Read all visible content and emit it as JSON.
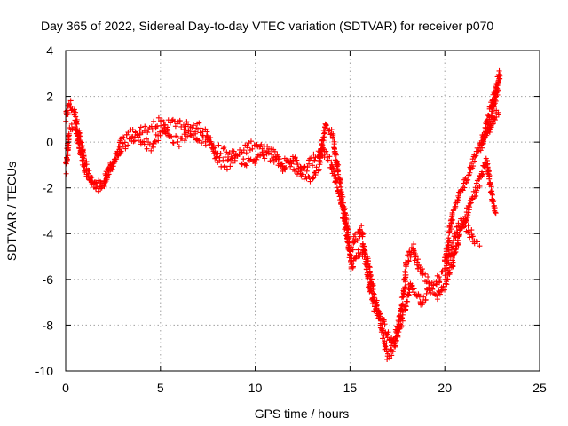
{
  "chart_data": {
    "type": "scatter",
    "title": "Day 365 of 2022, Sidereal Day-to-day VTEC variation (SDTVAR) for receiver p070",
    "xlabel": "GPS time / hours",
    "ylabel": "SDTVAR / TECUs",
    "xlim": [
      0,
      25
    ],
    "ylim": [
      -10,
      4
    ],
    "xticks": [
      0,
      5,
      10,
      15,
      20,
      25
    ],
    "yticks": [
      -10,
      -8,
      -6,
      -4,
      -2,
      0,
      2,
      4
    ],
    "xtick_labels": [
      "0",
      "5",
      "10",
      "15",
      "20",
      "25"
    ],
    "ytick_labels": [
      "-10",
      "-8",
      "-6",
      "-4",
      "-2",
      "0",
      "2",
      "4"
    ],
    "grid": true,
    "marker": "plus",
    "series": [
      {
        "name": "SDTVAR arc A",
        "color": "#ff0000",
        "spread": 0.45,
        "points": [
          [
            0.0,
            1.0
          ],
          [
            0.2,
            1.7
          ],
          [
            0.5,
            1.2
          ],
          [
            0.8,
            0.0
          ],
          [
            1.0,
            -0.9
          ],
          [
            1.3,
            -1.6
          ],
          [
            1.6,
            -2.0
          ],
          [
            2.0,
            -1.8
          ],
          [
            2.3,
            -1.2
          ],
          [
            2.7,
            -0.6
          ],
          [
            3.0,
            0.1
          ],
          [
            3.5,
            0.4
          ],
          [
            4.0,
            0.1
          ],
          [
            4.5,
            -0.2
          ],
          [
            5.0,
            0.3
          ],
          [
            5.5,
            0.8
          ],
          [
            6.0,
            0.9
          ],
          [
            6.5,
            0.6
          ],
          [
            7.0,
            0.2
          ],
          [
            7.5,
            0.0
          ],
          [
            8.0,
            -0.3
          ],
          [
            8.5,
            -0.5
          ],
          [
            9.0,
            -0.6
          ],
          [
            9.5,
            -0.3
          ],
          [
            10.0,
            0.0
          ],
          [
            10.5,
            -0.5
          ],
          [
            11.0,
            -0.7
          ],
          [
            11.5,
            -0.9
          ],
          [
            12.0,
            -1.1
          ],
          [
            12.5,
            -1.3
          ],
          [
            13.0,
            -0.8
          ],
          [
            13.5,
            -0.3
          ],
          [
            14.0,
            -1.0
          ],
          [
            14.5,
            -2.5
          ],
          [
            15.0,
            -4.8
          ],
          [
            15.3,
            -4.2
          ],
          [
            15.6,
            -3.8
          ],
          [
            16.0,
            -6.2
          ],
          [
            16.3,
            -7.2
          ],
          [
            16.6,
            -7.6
          ],
          [
            17.0,
            -8.5
          ],
          [
            17.3,
            -8.9
          ],
          [
            17.6,
            -7.8
          ],
          [
            17.8,
            -6.8
          ],
          [
            18.0,
            -5.2
          ],
          [
            18.3,
            -4.6
          ],
          [
            18.6,
            -5.4
          ],
          [
            19.0,
            -6.0
          ],
          [
            19.5,
            -6.2
          ],
          [
            20.0,
            -5.6
          ],
          [
            20.3,
            -4.8
          ],
          [
            20.7,
            -3.6
          ],
          [
            21.0,
            -3.4
          ],
          [
            21.3,
            -3.9
          ],
          [
            21.6,
            -4.3
          ],
          [
            21.9,
            -4.4
          ]
        ]
      },
      {
        "name": "SDTVAR arc B",
        "color": "#ff0000",
        "spread": 0.4,
        "points": [
          [
            0.0,
            -1.2
          ],
          [
            0.2,
            0.5
          ],
          [
            0.5,
            0.8
          ],
          [
            0.8,
            -0.6
          ],
          [
            1.1,
            -1.4
          ],
          [
            1.5,
            -1.8
          ],
          [
            2.0,
            -1.9
          ],
          [
            2.5,
            -0.8
          ],
          [
            3.0,
            -0.2
          ],
          [
            3.5,
            0.1
          ],
          [
            4.0,
            0.5
          ],
          [
            4.5,
            0.7
          ],
          [
            5.0,
            0.9
          ],
          [
            5.5,
            0.2
          ],
          [
            6.0,
            0.0
          ],
          [
            6.5,
            0.4
          ],
          [
            7.0,
            0.7
          ],
          [
            7.5,
            0.3
          ],
          [
            8.0,
            -0.8
          ],
          [
            8.5,
            -1.0
          ],
          [
            9.0,
            -0.6
          ],
          [
            9.5,
            -0.9
          ],
          [
            10.0,
            -0.8
          ],
          [
            10.5,
            -0.3
          ],
          [
            11.0,
            -0.5
          ],
          [
            11.5,
            -1.2
          ],
          [
            12.0,
            -0.7
          ],
          [
            12.5,
            -1.4
          ],
          [
            13.0,
            -1.6
          ],
          [
            13.4,
            -1.0
          ],
          [
            13.7,
            0.7
          ],
          [
            14.1,
            0.3
          ],
          [
            14.4,
            -1.5
          ],
          [
            14.8,
            -3.5
          ],
          [
            15.1,
            -5.5
          ],
          [
            15.5,
            -4.8
          ],
          [
            15.9,
            -5.0
          ],
          [
            16.3,
            -6.8
          ],
          [
            16.7,
            -8.3
          ],
          [
            17.0,
            -9.4
          ],
          [
            17.3,
            -9.0
          ],
          [
            17.6,
            -8.3
          ],
          [
            17.9,
            -7.2
          ],
          [
            18.2,
            -6.2
          ],
          [
            18.5,
            -6.6
          ],
          [
            18.8,
            -7.0
          ],
          [
            19.2,
            -6.4
          ],
          [
            19.6,
            -6.7
          ],
          [
            20.0,
            -6.3
          ],
          [
            20.4,
            -5.3
          ],
          [
            20.8,
            -4.0
          ],
          [
            21.2,
            -3.0
          ],
          [
            21.6,
            -2.2
          ],
          [
            21.9,
            -1.5
          ],
          [
            22.2,
            -0.8
          ],
          [
            22.5,
            -2.5
          ],
          [
            22.7,
            -3.2
          ]
        ]
      },
      {
        "name": "SDTVAR arc C",
        "color": "#ff0000",
        "spread": 0.35,
        "points": [
          [
            20.0,
            -5.2
          ],
          [
            20.4,
            -3.2
          ],
          [
            20.8,
            -2.3
          ],
          [
            21.2,
            -1.5
          ],
          [
            21.6,
            -0.6
          ],
          [
            22.0,
            0.1
          ],
          [
            22.3,
            0.6
          ],
          [
            22.6,
            1.5
          ],
          [
            22.9,
            3.0
          ],
          [
            21.9,
            -0.2
          ],
          [
            22.3,
            0.4
          ],
          [
            22.7,
            1.2
          ],
          [
            22.9,
            1.4
          ]
        ]
      }
    ]
  }
}
